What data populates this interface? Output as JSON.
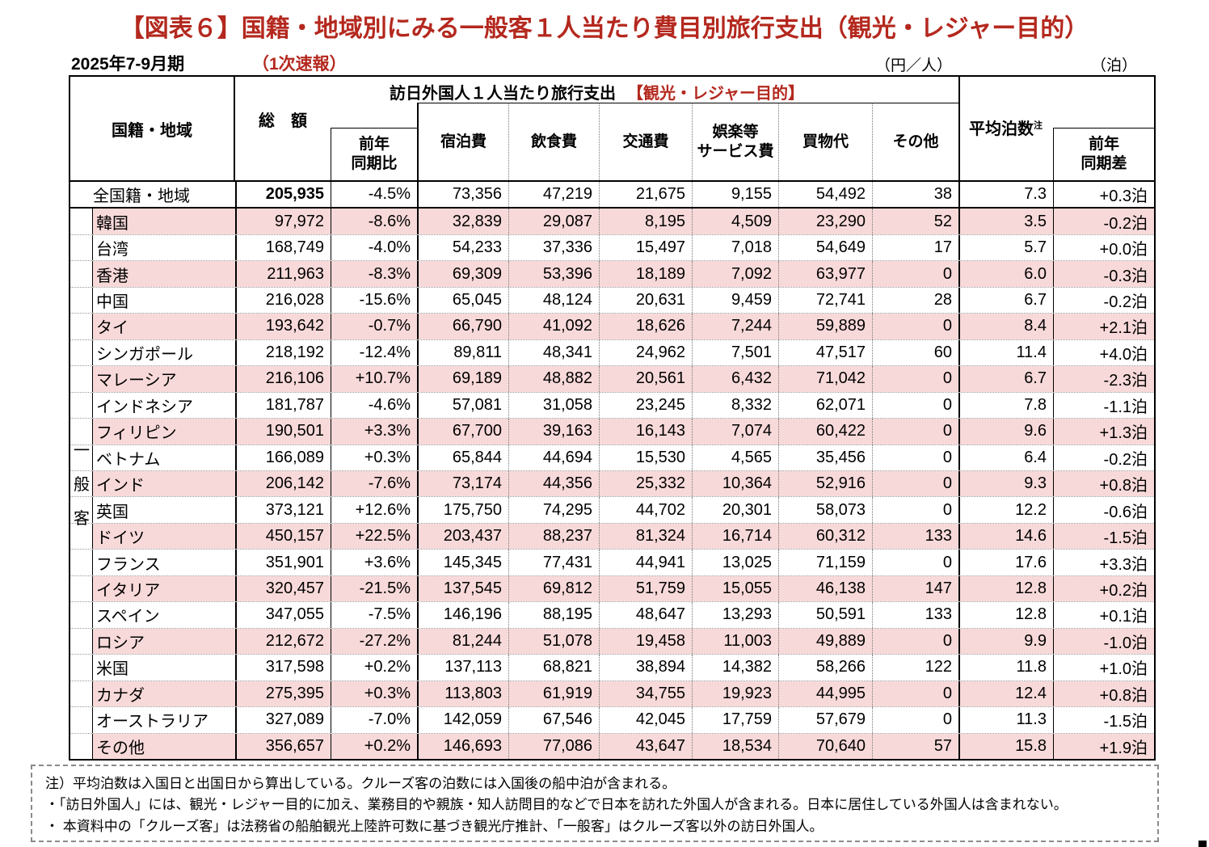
{
  "title": "【図表６】国籍・地域別にみる一般客１人当たり費目別旅行支出（観光・レジャー目的）",
  "meta": {
    "period": "2025年7-9月期",
    "bulletin": "（1次速報）",
    "unit_yen": "（円／人）",
    "unit_nights": "（泊）"
  },
  "table": {
    "header": {
      "region": "国籍・地域",
      "spend_title": "訪日外国人１人当たり旅行支出",
      "spend_title_red": "【観光・レジャー目的】",
      "total": "総　額",
      "yoy": [
        "前年",
        "同期比"
      ],
      "lodging": "宿泊費",
      "food": "飲食費",
      "transport": "交通費",
      "entertainment": [
        "娯楽等",
        "サービス費"
      ],
      "shopping": "買物代",
      "other": "その他",
      "avg_nights": "平均泊数",
      "avg_nights_sup": "注",
      "nights_diff": [
        "前年",
        "同期差"
      ]
    },
    "group_label": "一般客",
    "rows": [
      {
        "cells": [
          "全国籍・地域",
          "205,935",
          "-4.5%",
          "73,356",
          "47,219",
          "21,675",
          "9,155",
          "54,492",
          "38",
          "7.3",
          "+0.3泊"
        ]
      },
      {
        "cells": [
          "韓国",
          "97,972",
          "-8.6%",
          "32,839",
          "29,087",
          "8,195",
          "4,509",
          "23,290",
          "52",
          "3.5",
          "-0.2泊"
        ]
      },
      {
        "cells": [
          "台湾",
          "168,749",
          "-4.0%",
          "54,233",
          "37,336",
          "15,497",
          "7,018",
          "54,649",
          "17",
          "5.7",
          "+0.0泊"
        ]
      },
      {
        "cells": [
          "香港",
          "211,963",
          "-8.3%",
          "69,309",
          "53,396",
          "18,189",
          "7,092",
          "63,977",
          "0",
          "6.0",
          "-0.3泊"
        ]
      },
      {
        "cells": [
          "中国",
          "216,028",
          "-15.6%",
          "65,045",
          "48,124",
          "20,631",
          "9,459",
          "72,741",
          "28",
          "6.7",
          "-0.2泊"
        ]
      },
      {
        "cells": [
          "タイ",
          "193,642",
          "-0.7%",
          "66,790",
          "41,092",
          "18,626",
          "7,244",
          "59,889",
          "0",
          "8.4",
          "+2.1泊"
        ]
      },
      {
        "cells": [
          "シンガポール",
          "218,192",
          "-12.4%",
          "89,811",
          "48,341",
          "24,962",
          "7,501",
          "47,517",
          "60",
          "11.4",
          "+4.0泊"
        ]
      },
      {
        "cells": [
          "マレーシア",
          "216,106",
          "+10.7%",
          "69,189",
          "48,882",
          "20,561",
          "6,432",
          "71,042",
          "0",
          "6.7",
          "-2.3泊"
        ]
      },
      {
        "cells": [
          "インドネシア",
          "181,787",
          "-4.6%",
          "57,081",
          "31,058",
          "23,245",
          "8,332",
          "62,071",
          "0",
          "7.8",
          "-1.1泊"
        ]
      },
      {
        "cells": [
          "フィリピン",
          "190,501",
          "+3.3%",
          "67,700",
          "39,163",
          "16,143",
          "7,074",
          "60,422",
          "0",
          "9.6",
          "+1.3泊"
        ]
      },
      {
        "cells": [
          "ベトナム",
          "166,089",
          "+0.3%",
          "65,844",
          "44,694",
          "15,530",
          "4,565",
          "35,456",
          "0",
          "6.4",
          "-0.2泊"
        ]
      },
      {
        "cells": [
          "インド",
          "206,142",
          "-7.6%",
          "73,174",
          "44,356",
          "25,332",
          "10,364",
          "52,916",
          "0",
          "9.3",
          "+0.8泊"
        ]
      },
      {
        "cells": [
          "英国",
          "373,121",
          "+12.6%",
          "175,750",
          "74,295",
          "44,702",
          "20,301",
          "58,073",
          "0",
          "12.2",
          "-0.6泊"
        ]
      },
      {
        "cells": [
          "ドイツ",
          "450,157",
          "+22.5%",
          "203,437",
          "88,237",
          "81,324",
          "16,714",
          "60,312",
          "133",
          "14.6",
          "-1.5泊"
        ]
      },
      {
        "cells": [
          "フランス",
          "351,901",
          "+3.6%",
          "145,345",
          "77,431",
          "44,941",
          "13,025",
          "71,159",
          "0",
          "17.6",
          "+3.3泊"
        ]
      },
      {
        "cells": [
          "イタリア",
          "320,457",
          "-21.5%",
          "137,545",
          "69,812",
          "51,759",
          "15,055",
          "46,138",
          "147",
          "12.8",
          "+0.2泊"
        ]
      },
      {
        "cells": [
          "スペイン",
          "347,055",
          "-7.5%",
          "146,196",
          "88,195",
          "48,647",
          "13,293",
          "50,591",
          "133",
          "12.8",
          "+0.1泊"
        ]
      },
      {
        "cells": [
          "ロシア",
          "212,672",
          "-27.2%",
          "81,244",
          "51,078",
          "19,458",
          "11,003",
          "49,889",
          "0",
          "9.9",
          "-1.0泊"
        ]
      },
      {
        "cells": [
          "米国",
          "317,598",
          "+0.2%",
          "137,113",
          "68,821",
          "38,894",
          "14,382",
          "58,266",
          "122",
          "11.8",
          "+1.0泊"
        ]
      },
      {
        "cells": [
          "カナダ",
          "275,395",
          "+0.3%",
          "113,803",
          "61,919",
          "34,755",
          "19,923",
          "44,995",
          "0",
          "12.4",
          "+0.8泊"
        ]
      },
      {
        "cells": [
          "オーストラリア",
          "327,089",
          "-7.0%",
          "142,059",
          "67,546",
          "42,045",
          "17,759",
          "57,679",
          "0",
          "11.3",
          "-1.5泊"
        ]
      },
      {
        "cells": [
          "その他",
          "356,657",
          "+0.2%",
          "146,693",
          "77,086",
          "43,647",
          "18,534",
          "70,640",
          "57",
          "15.8",
          "+1.9泊"
        ]
      }
    ]
  },
  "notes": [
    "注）平均泊数は入国日と出国日から算出している。クルーズ客の泊数には入国後の船中泊が含まれる。",
    "・「訪日外国人」には、観光・レジャー目的に加え、業務目的や親族・知人訪問目的などで日本を訪れた外国人が含まれる。日本に居住している外国人は含まれない。",
    "・ 本資料中の「クルーズ客」は法務省の船舶観光上陸許可数に基づき観光庁推計、「一般客」はクルーズ客以外の訪日外国人。"
  ],
  "colors": {
    "accent_red": "#b4281e",
    "row_pink": "#f8d9d9"
  }
}
